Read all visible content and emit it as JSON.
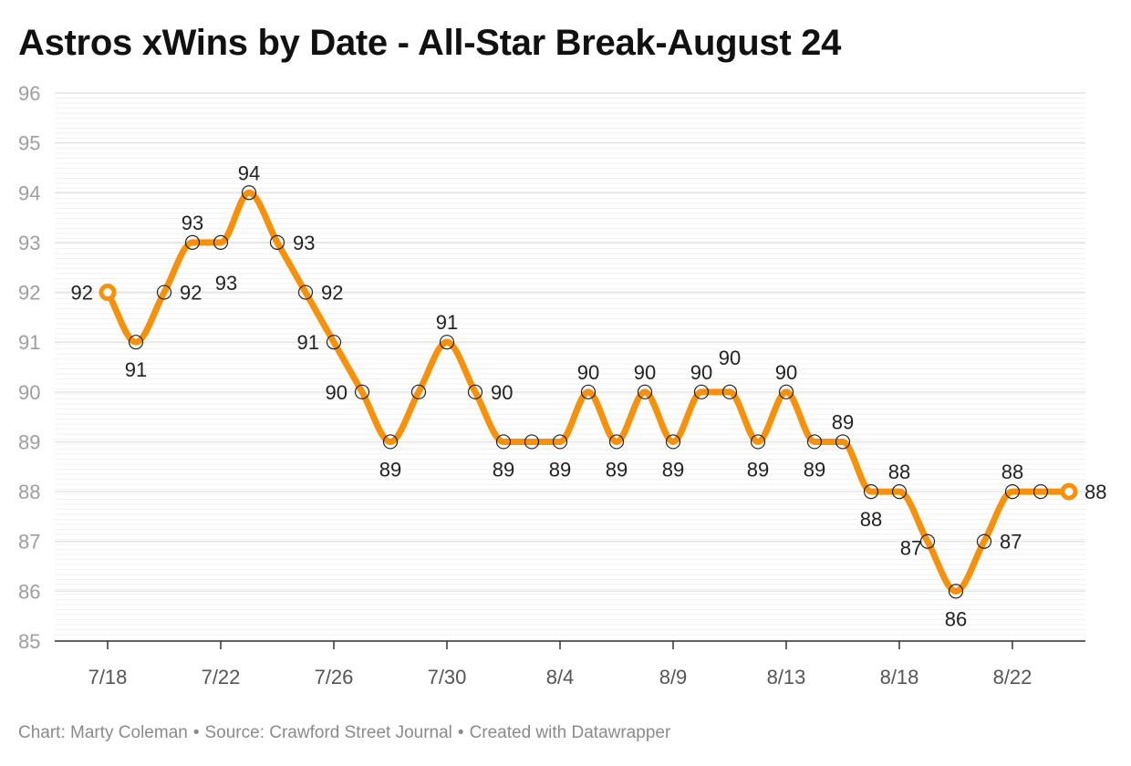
{
  "title": "Astros xWins by Date - All-Star Break-August 24",
  "footer": {
    "chart_by": "Chart: Marty Coleman",
    "source": "Source: Crawford Street Journal",
    "created": "Created with Datawrapper",
    "separator": "•"
  },
  "colors": {
    "line": "#f7900a",
    "grid": "#e4e4e4",
    "axis": "#333333"
  },
  "chart_data": {
    "type": "line",
    "title": "Astros xWins by Date - All-Star Break-August 24",
    "xlabel": "",
    "ylabel": "",
    "ylim": [
      85,
      96
    ],
    "yticks": [
      85,
      86,
      87,
      88,
      89,
      90,
      91,
      92,
      93,
      94,
      95,
      96
    ],
    "xticks": [
      "7/18",
      "7/22",
      "7/26",
      "7/30",
      "8/4",
      "8/9",
      "8/13",
      "8/18",
      "8/22"
    ],
    "xtick_index": [
      0,
      4,
      8,
      12,
      16,
      20,
      24,
      28,
      32
    ],
    "series": [
      {
        "name": "xWins",
        "values": [
          92,
          91,
          92,
          93,
          93,
          94,
          93,
          92,
          91,
          90,
          89,
          90,
          91,
          90,
          89,
          89,
          89,
          90,
          89,
          90,
          89,
          90,
          90,
          89,
          90,
          89,
          89,
          88,
          88,
          87,
          86,
          87,
          88,
          88,
          88
        ],
        "labels": [
          "92",
          "91",
          "92",
          "93",
          "93",
          "94",
          "93",
          "92",
          "91",
          "90",
          "89",
          "",
          "91",
          "90",
          "89",
          "",
          "89",
          "90",
          "89",
          "90",
          "89",
          "90",
          "90",
          "89",
          "90",
          "89",
          "89",
          "88",
          "88",
          "87",
          "86",
          "87",
          "88",
          "",
          "88"
        ]
      }
    ]
  }
}
